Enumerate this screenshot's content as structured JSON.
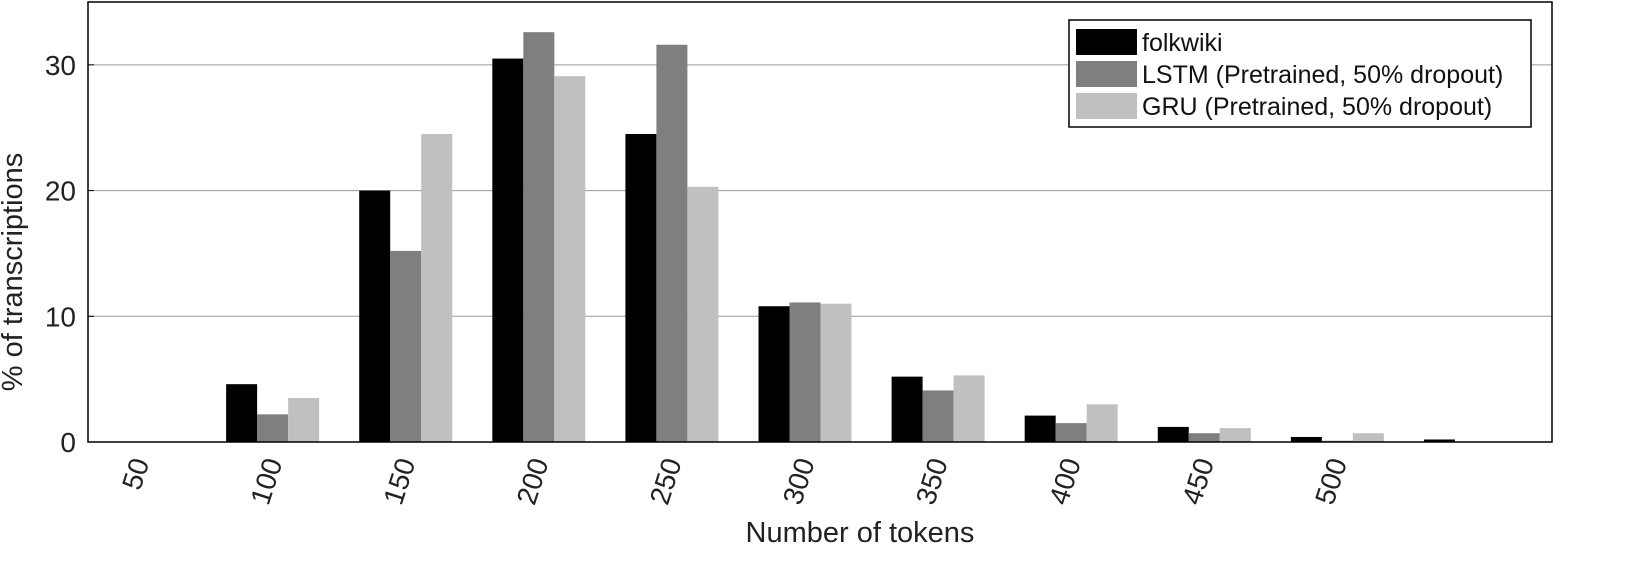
{
  "chart_data": {
    "type": "bar",
    "title": "",
    "xlabel": "Number of tokens",
    "ylabel": "% of transcriptions",
    "categories": [
      "50",
      "100",
      "150",
      "200",
      "250",
      "300",
      "350",
      "400",
      "450",
      "500",
      ""
    ],
    "x_tick_labels": [
      "50",
      "100",
      "150",
      "200",
      "250",
      "300",
      "350",
      "400",
      "450",
      "500"
    ],
    "y_ticks": [
      0,
      10,
      20,
      30
    ],
    "ylim": [
      0,
      35
    ],
    "grid": "horizontal",
    "legend_position": "top-right",
    "series": [
      {
        "name": "folkwiki",
        "color": "#000000",
        "values": [
          0,
          4.6,
          20.0,
          30.5,
          24.5,
          10.8,
          5.2,
          2.1,
          1.2,
          0.4,
          0.2
        ]
      },
      {
        "name": "LSTM (Pretrained, 50% dropout)",
        "color": "#7f7f7f",
        "values": [
          0,
          2.2,
          15.2,
          32.6,
          31.6,
          11.1,
          4.1,
          1.5,
          0.7,
          0.1,
          0
        ]
      },
      {
        "name": "GRU (Pretrained, 50% dropout)",
        "color": "#c0c0c0",
        "values": [
          0,
          3.5,
          24.5,
          29.1,
          20.3,
          11.0,
          5.3,
          3.0,
          1.1,
          0.7,
          0
        ]
      }
    ]
  }
}
